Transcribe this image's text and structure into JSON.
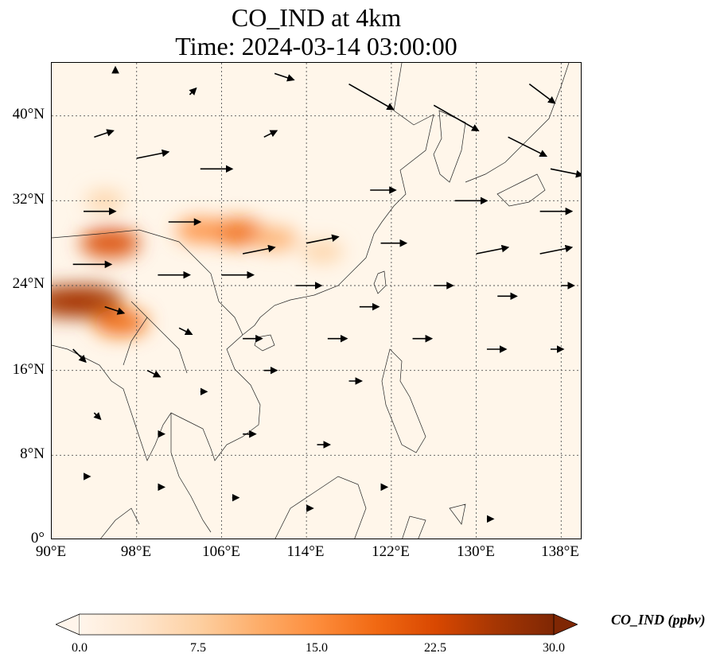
{
  "title": {
    "line1": "CO_IND at 4km",
    "line2": "Time: 2024-03-14 03:00:00"
  },
  "map": {
    "extent": {
      "lon": [
        90,
        140
      ],
      "lat": [
        0,
        45
      ]
    },
    "lat_ticks": [
      "0°",
      "8°N",
      "16°N",
      "24°N",
      "32°N",
      "40°N"
    ],
    "lon_ticks": [
      "90°E",
      "98°E",
      "106°E",
      "114°E",
      "122°E",
      "130°E",
      "138°E"
    ],
    "gridlines": true,
    "land_color": "#fff3e2",
    "plumes": [
      {
        "lon": 107.5,
        "lat": 29.0,
        "value": 19
      },
      {
        "lon": 104.0,
        "lat": 29.2,
        "value": 14
      },
      {
        "lon": 111.0,
        "lat": 28.4,
        "value": 12
      },
      {
        "lon": 115.5,
        "lat": 27.2,
        "value": 9
      },
      {
        "lon": 95.5,
        "lat": 28.0,
        "value": 22
      },
      {
        "lon": 93.5,
        "lat": 22.5,
        "value": 28
      },
      {
        "lon": 91.2,
        "lat": 22.5,
        "value": 26
      },
      {
        "lon": 96.5,
        "lat": 20.5,
        "value": 18
      },
      {
        "lon": 95.0,
        "lat": 32.0,
        "value": 7
      }
    ],
    "wind_arrows": [
      {
        "lon": 94,
        "lat": 38,
        "u": 3,
        "v": 1
      },
      {
        "lon": 98,
        "lat": 36,
        "u": 5,
        "v": 1
      },
      {
        "lon": 104,
        "lat": 35,
        "u": 5,
        "v": 0
      },
      {
        "lon": 110,
        "lat": 38,
        "u": 2,
        "v": 1
      },
      {
        "lon": 118,
        "lat": 43,
        "u": 7,
        "v": -4
      },
      {
        "lon": 126,
        "lat": 41,
        "u": 7,
        "v": -4
      },
      {
        "lon": 133,
        "lat": 38,
        "u": 6,
        "v": -3
      },
      {
        "lon": 137,
        "lat": 35,
        "u": 5,
        "v": -1
      },
      {
        "lon": 120,
        "lat": 33,
        "u": 4,
        "v": 0
      },
      {
        "lon": 128,
        "lat": 32,
        "u": 5,
        "v": 0
      },
      {
        "lon": 136,
        "lat": 31,
        "u": 5,
        "v": 0
      },
      {
        "lon": 93,
        "lat": 31,
        "u": 5,
        "v": 0
      },
      {
        "lon": 101,
        "lat": 30,
        "u": 5,
        "v": 0
      },
      {
        "lon": 108,
        "lat": 27,
        "u": 5,
        "v": 1
      },
      {
        "lon": 114,
        "lat": 28,
        "u": 5,
        "v": 1
      },
      {
        "lon": 121,
        "lat": 28,
        "u": 4,
        "v": 0
      },
      {
        "lon": 130,
        "lat": 27,
        "u": 5,
        "v": 1
      },
      {
        "lon": 136,
        "lat": 27,
        "u": 5,
        "v": 1
      },
      {
        "lon": 92,
        "lat": 26,
        "u": 6,
        "v": 0
      },
      {
        "lon": 100,
        "lat": 25,
        "u": 5,
        "v": 0
      },
      {
        "lon": 106,
        "lat": 25,
        "u": 5,
        "v": 0
      },
      {
        "lon": 113,
        "lat": 24,
        "u": 4,
        "v": 0
      },
      {
        "lon": 119,
        "lat": 22,
        "u": 3,
        "v": 0
      },
      {
        "lon": 126,
        "lat": 24,
        "u": 3,
        "v": 0
      },
      {
        "lon": 132,
        "lat": 23,
        "u": 3,
        "v": 0
      },
      {
        "lon": 138,
        "lat": 24,
        "u": 2,
        "v": 0
      },
      {
        "lon": 95,
        "lat": 22,
        "u": 3,
        "v": -1
      },
      {
        "lon": 102,
        "lat": 20,
        "u": 2,
        "v": -1
      },
      {
        "lon": 108,
        "lat": 19,
        "u": 3,
        "v": 0
      },
      {
        "lon": 116,
        "lat": 19,
        "u": 3,
        "v": 0
      },
      {
        "lon": 124,
        "lat": 19,
        "u": 3,
        "v": 0
      },
      {
        "lon": 131,
        "lat": 18,
        "u": 3,
        "v": 0
      },
      {
        "lon": 137,
        "lat": 18,
        "u": 2,
        "v": 0
      },
      {
        "lon": 92,
        "lat": 18,
        "u": 2,
        "v": -2
      },
      {
        "lon": 99,
        "lat": 16,
        "u": 2,
        "v": -1
      },
      {
        "lon": 104,
        "lat": 14,
        "u": 1,
        "v": 0
      },
      {
        "lon": 110,
        "lat": 16,
        "u": 2,
        "v": 0
      },
      {
        "lon": 118,
        "lat": 15,
        "u": 2,
        "v": 0
      },
      {
        "lon": 94,
        "lat": 12,
        "u": 1,
        "v": -1
      },
      {
        "lon": 100,
        "lat": 10,
        "u": 1,
        "v": 0
      },
      {
        "lon": 108,
        "lat": 10,
        "u": 2,
        "v": 0
      },
      {
        "lon": 115,
        "lat": 9,
        "u": 2,
        "v": 0
      },
      {
        "lon": 93,
        "lat": 6,
        "u": 1,
        "v": 0
      },
      {
        "lon": 100,
        "lat": 5,
        "u": 1,
        "v": 0
      },
      {
        "lon": 107,
        "lat": 4,
        "u": 1,
        "v": 0
      },
      {
        "lon": 114,
        "lat": 3,
        "u": 1,
        "v": 0
      },
      {
        "lon": 121,
        "lat": 5,
        "u": 1,
        "v": 0
      },
      {
        "lon": 131,
        "lat": 2,
        "u": 1,
        "v": 0
      },
      {
        "lon": 96,
        "lat": 44,
        "u": 0,
        "v": 1
      },
      {
        "lon": 103,
        "lat": 42,
        "u": 1,
        "v": 1
      },
      {
        "lon": 111,
        "lat": 44,
        "u": 3,
        "v": -1
      },
      {
        "lon": 135,
        "lat": 43,
        "u": 4,
        "v": -3
      }
    ]
  },
  "colorbar": {
    "label": "CO_IND (ppbv)",
    "ticks": [
      "0.0",
      "7.5",
      "15.0",
      "22.5",
      "30.0"
    ],
    "vmin": 0,
    "vmax": 30,
    "colors": [
      "#fff5eb",
      "#fee6ce",
      "#fdd0a2",
      "#fdae6b",
      "#fd8d3c",
      "#f16913",
      "#d94801",
      "#a63603",
      "#7f2704"
    ]
  }
}
